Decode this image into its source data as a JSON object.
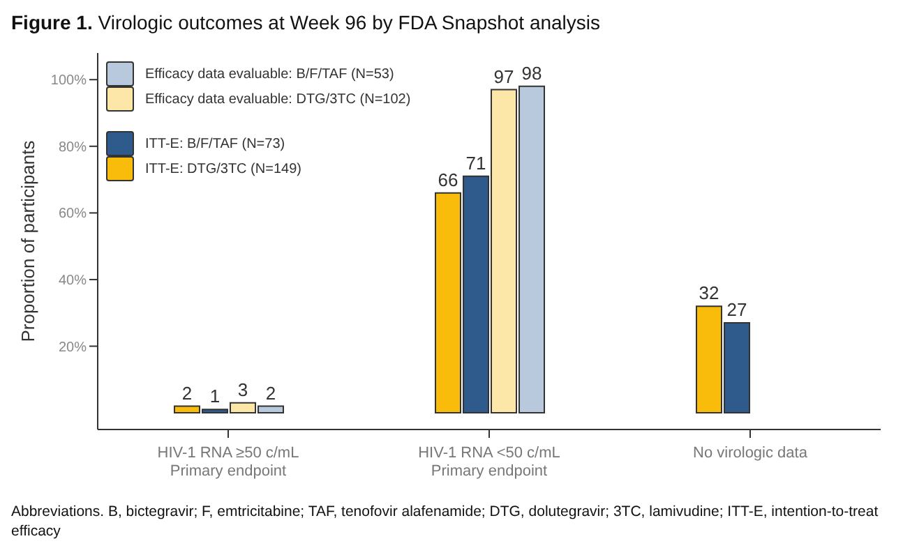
{
  "chart_data": {
    "type": "bar",
    "title": "Figure 1. Virologic outcomes at Week 96 by FDA Snapshot analysis",
    "ylabel": "Proportion of participants",
    "categories": [
      "HIV-1 RNA ≥50 c/mL\nPrimary endpoint",
      "HIV-1 RNA <50 c/mL\nPrimary endpoint",
      "No virologic data"
    ],
    "series": [
      {
        "name": "ITT-E: DTG/3TC (N=149)",
        "color": "#f9bc0a",
        "values": [
          2,
          66,
          32
        ]
      },
      {
        "name": "ITT-E: B/F/TAF (N=73)",
        "color": "#2e5a8c",
        "values": [
          1,
          71,
          27
        ]
      },
      {
        "name": "Efficacy data evaluable: DTG/3TC (N=102)",
        "color": "#fde7a8",
        "values": [
          3,
          97,
          null
        ]
      },
      {
        "name": "Efficacy data evaluable: B/F/TAF (N=53)",
        "color": "#b9c9dd",
        "values": [
          2,
          98,
          null
        ]
      }
    ],
    "ylim": [
      -5,
      108
    ],
    "yticks": [
      {
        "value": 20,
        "label": "20%"
      },
      {
        "value": 40,
        "label": "40%"
      },
      {
        "value": 60,
        "label": "60%"
      },
      {
        "value": 80,
        "label": "80%"
      },
      {
        "value": 100,
        "label": "100%"
      }
    ],
    "data_labels": true,
    "legend": "top left",
    "grid": false,
    "annotations": [
      "Abbreviations. B, bictegravir; F, emtricitabine; TAF, tenofovir alafenamide; DTG, dolutegravir; 3TC, lamivudine; ITT-E, intention-to-treat efficacy"
    ]
  }
}
